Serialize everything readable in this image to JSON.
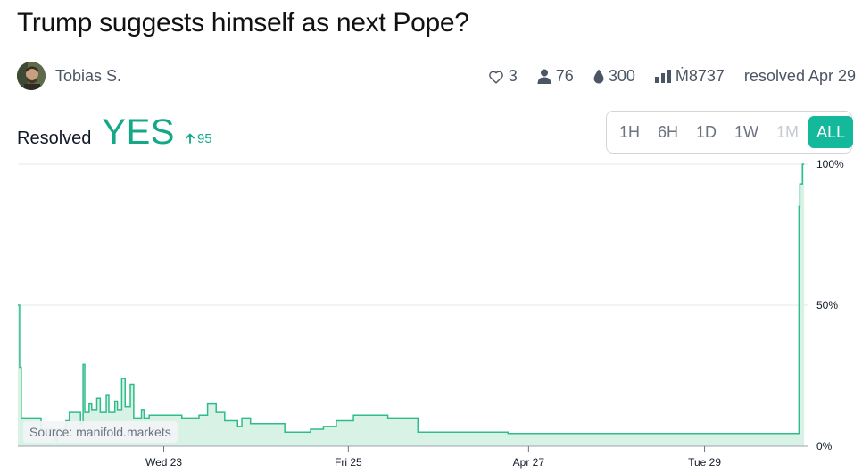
{
  "title": "Trump suggests himself as next Pope?",
  "author": {
    "name": "Tobias S."
  },
  "stats": {
    "likes": "3",
    "traders": "76",
    "liquidity": "300",
    "volume": "Ṁ8737",
    "resolved": "resolved Apr 29"
  },
  "resolution": {
    "label": "Resolved",
    "value": "YES",
    "delta": "95"
  },
  "time_tabs": [
    {
      "label": "1H",
      "state": "normal"
    },
    {
      "label": "6H",
      "state": "normal"
    },
    {
      "label": "1D",
      "state": "normal"
    },
    {
      "label": "1W",
      "state": "normal"
    },
    {
      "label": "1M",
      "state": "disabled"
    },
    {
      "label": "ALL",
      "state": "active"
    }
  ],
  "source_label": "Source: manifold.markets",
  "colors": {
    "accent": "#14b89a",
    "line": "#2ebd8a",
    "fill": "#d8f2e6"
  },
  "chart_data": {
    "type": "area",
    "x_tick_labels": [
      "Wed 23",
      "Fri 25",
      "Apr 27",
      "Tue 29"
    ],
    "y_tick_labels": [
      "100%",
      "50%",
      "0%"
    ],
    "ylim": [
      0,
      100
    ],
    "grid": true,
    "points": [
      [
        0.0,
        50
      ],
      [
        0.2,
        28
      ],
      [
        0.4,
        10
      ],
      [
        2.5,
        10
      ],
      [
        2.7,
        6
      ],
      [
        4.3,
        6
      ],
      [
        4.4,
        2
      ],
      [
        4.6,
        6
      ],
      [
        5.5,
        6
      ],
      [
        5.6,
        9
      ],
      [
        6.0,
        12
      ],
      [
        7.2,
        12
      ],
      [
        7.3,
        8
      ],
      [
        7.6,
        29
      ],
      [
        7.8,
        12
      ],
      [
        8.2,
        12
      ],
      [
        8.3,
        15
      ],
      [
        8.6,
        13
      ],
      [
        9.1,
        13
      ],
      [
        9.2,
        17
      ],
      [
        9.6,
        12
      ],
      [
        10.2,
        12
      ],
      [
        10.3,
        18
      ],
      [
        10.6,
        12
      ],
      [
        11.2,
        12
      ],
      [
        11.3,
        16
      ],
      [
        11.6,
        13
      ],
      [
        12.0,
        13
      ],
      [
        12.1,
        24
      ],
      [
        12.5,
        14
      ],
      [
        13.0,
        14
      ],
      [
        13.1,
        22
      ],
      [
        13.5,
        10
      ],
      [
        14.3,
        10
      ],
      [
        14.4,
        13
      ],
      [
        14.7,
        10
      ],
      [
        15.2,
        10
      ],
      [
        15.3,
        11
      ],
      [
        19.0,
        11
      ],
      [
        19.1,
        10
      ],
      [
        21.0,
        10
      ],
      [
        21.1,
        11
      ],
      [
        22.0,
        11
      ],
      [
        22.1,
        15
      ],
      [
        23.0,
        15
      ],
      [
        23.1,
        12
      ],
      [
        24.0,
        12
      ],
      [
        24.1,
        9
      ],
      [
        25.5,
        9
      ],
      [
        25.6,
        7
      ],
      [
        26.0,
        7
      ],
      [
        26.1,
        10
      ],
      [
        27.0,
        10
      ],
      [
        27.1,
        8
      ],
      [
        31.0,
        8
      ],
      [
        31.1,
        5
      ],
      [
        34.0,
        5
      ],
      [
        34.1,
        6
      ],
      [
        35.5,
        6
      ],
      [
        35.6,
        7
      ],
      [
        37.0,
        7
      ],
      [
        37.1,
        9
      ],
      [
        39.0,
        9
      ],
      [
        39.1,
        11
      ],
      [
        43.0,
        11
      ],
      [
        43.1,
        10
      ],
      [
        46.5,
        10
      ],
      [
        46.6,
        5
      ],
      [
        57.0,
        5
      ],
      [
        57.1,
        4.5
      ],
      [
        90.8,
        4.5
      ],
      [
        91.0,
        85
      ],
      [
        91.1,
        93
      ],
      [
        91.4,
        100
      ],
      [
        91.6,
        100
      ]
    ]
  }
}
